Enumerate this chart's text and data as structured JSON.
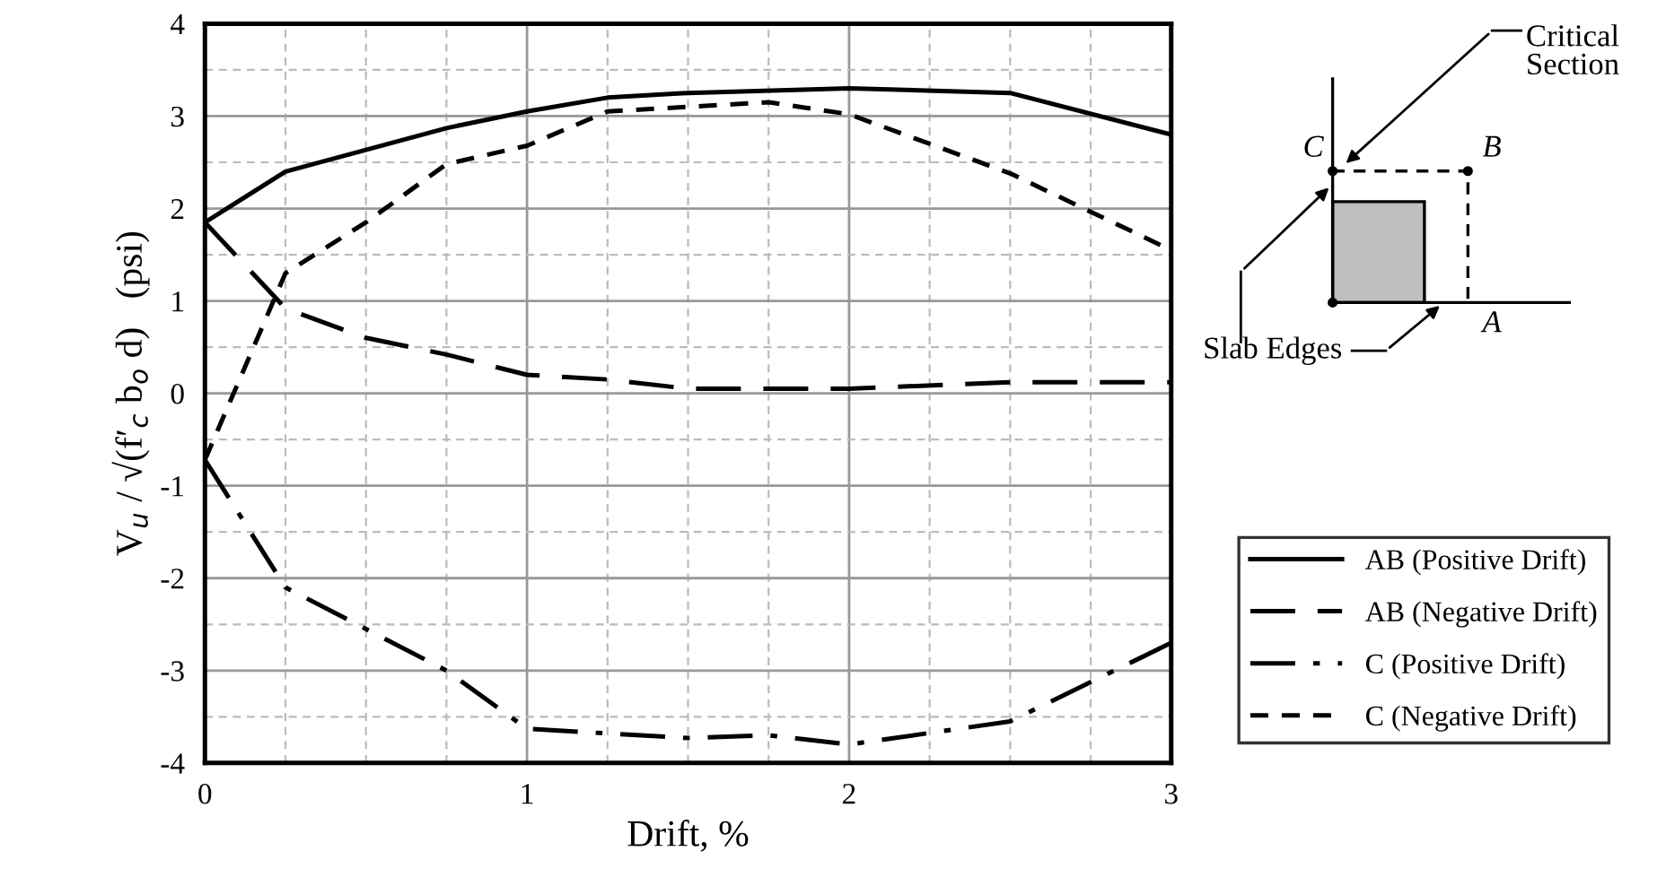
{
  "chart_data": {
    "type": "line",
    "xlabel": "Drift, %",
    "ylabel": "V$_{u}$ / √(f′$_{c}$ b$_{o}$ d)   (psi)",
    "xlim": [
      0,
      3
    ],
    "xticks": [
      0,
      1,
      2,
      3
    ],
    "ylim": [
      -4,
      4
    ],
    "yticks": [
      -4,
      -3,
      -2,
      -1,
      0,
      1,
      2,
      3,
      4
    ],
    "grid": true,
    "legend": "right",
    "marker": "none",
    "series": [
      {
        "name": "AB (Positive Drift)",
        "color": "#000000",
        "line_style": "solid",
        "x": [
          0,
          0.25,
          0.75,
          1,
          1.25,
          1.5,
          2,
          2.5,
          3
        ],
        "values": [
          1.85,
          2.4,
          2.87,
          3.05,
          3.2,
          3.25,
          3.3,
          3.25,
          2.8
        ]
      },
      {
        "name": "AB (Negative Drift)",
        "color": "#000000",
        "line_style": "longdash",
        "x": [
          0,
          0.25,
          0.5,
          0.75,
          1,
          1.25,
          1.5,
          2,
          2.5,
          3
        ],
        "values": [
          1.85,
          0.92,
          0.6,
          0.42,
          0.2,
          0.15,
          0.05,
          0.05,
          0.12,
          0.12
        ]
      },
      {
        "name": "C (Positive Drift)",
        "color": "#000000",
        "line_style": "dashdot",
        "x": [
          0,
          0.25,
          0.75,
          1,
          1.5,
          1.75,
          2,
          2.5,
          3
        ],
        "values": [
          -0.72,
          -2.1,
          -3.0,
          -3.63,
          -3.73,
          -3.7,
          -3.8,
          -3.55,
          -2.7
        ]
      },
      {
        "name": "C (Negative Drift)",
        "color": "#000000",
        "line_style": "dashed",
        "x": [
          0,
          0.25,
          0.5,
          0.75,
          1,
          1.25,
          1.75,
          2,
          2.5,
          3
        ],
        "values": [
          -0.72,
          1.3,
          1.85,
          2.48,
          2.68,
          3.05,
          3.15,
          3.02,
          2.38,
          1.55
        ]
      }
    ],
    "annotations": [
      "Critical Section",
      "Slab Edges",
      "C",
      "B",
      "A"
    ]
  }
}
